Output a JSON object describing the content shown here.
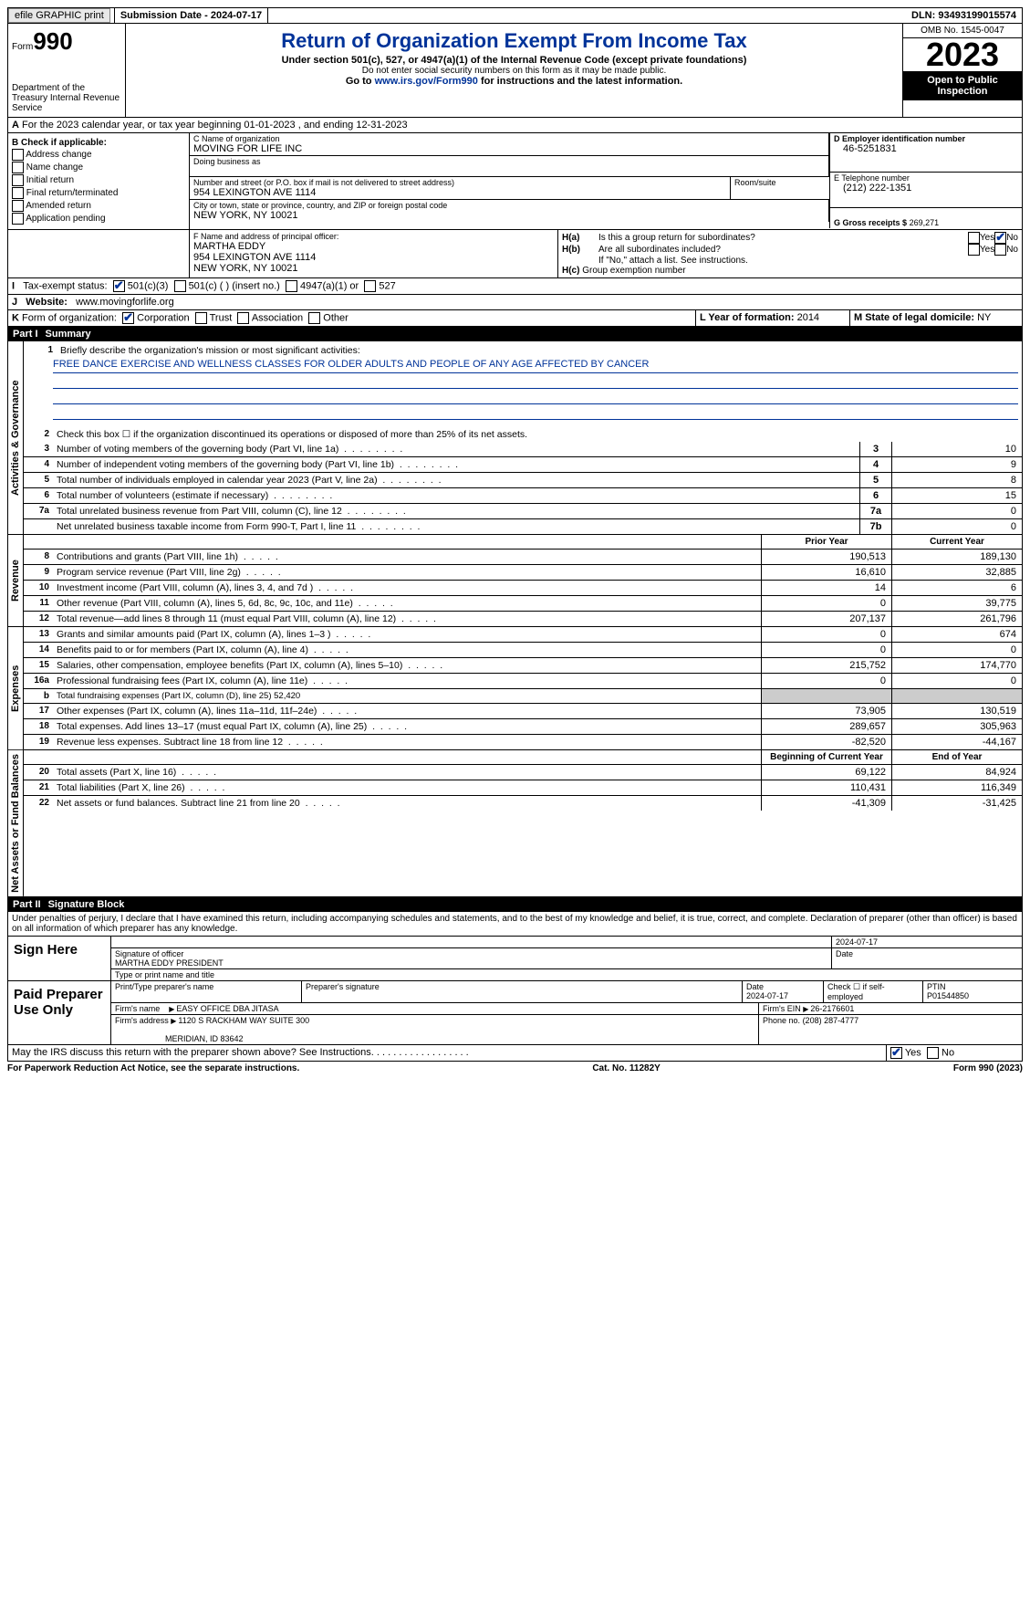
{
  "topbar": {
    "efile": "efile GRAPHIC print",
    "submission": "Submission Date - 2024-07-17",
    "dln": "DLN: 93493199015574"
  },
  "header": {
    "form_label": "Form",
    "form_no": "990",
    "dept": "Department of the Treasury Internal Revenue Service",
    "title": "Return of Organization Exempt From Income Tax",
    "sub1": "Under section 501(c), 527, or 4947(a)(1) of the Internal Revenue Code (except private foundations)",
    "sub2": "Do not enter social security numbers on this form as it may be made public.",
    "sub3_pre": "Go to ",
    "sub3_link": "www.irs.gov/Form990",
    "sub3_post": " for instructions and the latest information.",
    "omb": "OMB No. 1545-0047",
    "year": "2023",
    "inspect": "Open to Public Inspection"
  },
  "lineA": {
    "text": "For the 2023 calendar year, or tax year beginning 01-01-2023   , and ending 12-31-2023",
    "label": "A"
  },
  "sectB": {
    "hdr": "B Check if applicable:",
    "items": [
      "Address change",
      "Name change",
      "Initial return",
      "Final return/terminated",
      "Amended return",
      "Application pending"
    ]
  },
  "sectC": {
    "name_lbl": "C Name of organization",
    "name": "MOVING FOR LIFE INC",
    "dba_lbl": "Doing business as",
    "dba": "",
    "addr_lbl": "Number and street (or P.O. box if mail is not delivered to street address)",
    "room_lbl": "Room/suite",
    "addr": "954 LEXINGTON AVE 1114",
    "city_lbl": "City or town, state or province, country, and ZIP or foreign postal code",
    "city": "NEW YORK, NY  10021"
  },
  "sectD": {
    "lbl": "D Employer identification number",
    "val": "46-5251831"
  },
  "sectE": {
    "lbl": "E Telephone number",
    "val": "(212) 222-1351"
  },
  "sectG": {
    "lbl": "G Gross receipts $",
    "val": "269,271"
  },
  "sectF": {
    "lbl": "F  Name and address of principal officer:",
    "lines": [
      "MARTHA EDDY",
      "954 LEXINGTON AVE 1114",
      "NEW YORK, NY  10021"
    ]
  },
  "sectH": {
    "a": "Is this a group return for subordinates?",
    "a_yes": "Yes",
    "a_no": "No",
    "a_checked": "no",
    "b": "Are all subordinates included?",
    "b_yes": "Yes",
    "b_no": "No",
    "b_note": "If \"No,\" attach a list. See instructions.",
    "c": "Group exemption number",
    "c_lbl": "H(a)",
    "c_lbl2": "H(b)",
    "c_lbl3": "H(c)"
  },
  "sectI": {
    "lbl": "Tax-exempt status:",
    "o1": "501(c)(3)",
    "o2": "501(c) (  ) (insert no.)",
    "o3": "4947(a)(1) or",
    "o4": "527"
  },
  "sectJ": {
    "lbl": "Website:",
    "val": "www.movingforlife.org"
  },
  "sectK": {
    "lbl": "Form of organization:",
    "o1": "Corporation",
    "o2": "Trust",
    "o3": "Association",
    "o4": "Other"
  },
  "sectL": {
    "lbl": "L Year of formation:",
    "val": "2014"
  },
  "sectM": {
    "lbl": "M State of legal domicile:",
    "val": "NY"
  },
  "part1": {
    "num": "Part I",
    "title": "Summary"
  },
  "summary": {
    "groups": [
      {
        "label": "Activities & Governance",
        "rows": [
          {
            "n": "1",
            "t": "Briefly describe the organization's mission or most significant activities:",
            "mission": "FREE DANCE EXERCISE AND WELLNESS CLASSES FOR OLDER ADULTS AND PEOPLE OF ANY AGE AFFECTED BY CANCER",
            "type": "mission"
          },
          {
            "n": "2",
            "t": "Check this box ☐ if the organization discontinued its operations or disposed of more than 25% of its net assets.",
            "type": "plain"
          },
          {
            "n": "3",
            "t": "Number of voting members of the governing body (Part VI, line 1a)",
            "box": "3",
            "v": "10"
          },
          {
            "n": "4",
            "t": "Number of independent voting members of the governing body (Part VI, line 1b)",
            "box": "4",
            "v": "9"
          },
          {
            "n": "5",
            "t": "Total number of individuals employed in calendar year 2023 (Part V, line 2a)",
            "box": "5",
            "v": "8"
          },
          {
            "n": "6",
            "t": "Total number of volunteers (estimate if necessary)",
            "box": "6",
            "v": "15"
          },
          {
            "n": "7a",
            "t": "Total unrelated business revenue from Part VIII, column (C), line 12",
            "box": "7a",
            "v": "0"
          },
          {
            "n": "",
            "t": "Net unrelated business taxable income from Form 990-T, Part I, line 11",
            "box": "7b",
            "v": "0"
          }
        ]
      },
      {
        "label": "Revenue",
        "header": {
          "c1": "Prior Year",
          "c2": "Current Year"
        },
        "rows": [
          {
            "n": "8",
            "t": "Contributions and grants (Part VIII, line 1h)",
            "c1": "190,513",
            "c2": "189,130"
          },
          {
            "n": "9",
            "t": "Program service revenue (Part VIII, line 2g)",
            "c1": "16,610",
            "c2": "32,885"
          },
          {
            "n": "10",
            "t": "Investment income (Part VIII, column (A), lines 3, 4, and 7d )",
            "c1": "14",
            "c2": "6"
          },
          {
            "n": "11",
            "t": "Other revenue (Part VIII, column (A), lines 5, 6d, 8c, 9c, 10c, and 11e)",
            "c1": "0",
            "c2": "39,775"
          },
          {
            "n": "12",
            "t": "Total revenue—add lines 8 through 11 (must equal Part VIII, column (A), line 12)",
            "c1": "207,137",
            "c2": "261,796"
          }
        ]
      },
      {
        "label": "Expenses",
        "rows": [
          {
            "n": "13",
            "t": "Grants and similar amounts paid (Part IX, column (A), lines 1–3 )",
            "c1": "0",
            "c2": "674"
          },
          {
            "n": "14",
            "t": "Benefits paid to or for members (Part IX, column (A), line 4)",
            "c1": "0",
            "c2": "0"
          },
          {
            "n": "15",
            "t": "Salaries, other compensation, employee benefits (Part IX, column (A), lines 5–10)",
            "c1": "215,752",
            "c2": "174,770"
          },
          {
            "n": "16a",
            "t": "Professional fundraising fees (Part IX, column (A), line 11e)",
            "c1": "0",
            "c2": "0"
          },
          {
            "n": "b",
            "t": "Total fundraising expenses (Part IX, column (D), line 25) 52,420",
            "type": "fund",
            "c1": "shade",
            "c2": "shade"
          },
          {
            "n": "17",
            "t": "Other expenses (Part IX, column (A), lines 11a–11d, 11f–24e)",
            "c1": "73,905",
            "c2": "130,519"
          },
          {
            "n": "18",
            "t": "Total expenses. Add lines 13–17 (must equal Part IX, column (A), line 25)",
            "c1": "289,657",
            "c2": "305,963"
          },
          {
            "n": "19",
            "t": "Revenue less expenses. Subtract line 18 from line 12",
            "c1": "-82,520",
            "c2": "-44,167"
          }
        ]
      },
      {
        "label": "Net Assets or Fund Balances",
        "header": {
          "c1": "Beginning of Current Year",
          "c2": "End of Year"
        },
        "rows": [
          {
            "n": "20",
            "t": "Total assets (Part X, line 16)",
            "c1": "69,122",
            "c2": "84,924"
          },
          {
            "n": "21",
            "t": "Total liabilities (Part X, line 26)",
            "c1": "110,431",
            "c2": "116,349"
          },
          {
            "n": "22",
            "t": "Net assets or fund balances. Subtract line 21 from line 20",
            "c1": "-41,309",
            "c2": "-31,425"
          }
        ]
      }
    ]
  },
  "part2": {
    "num": "Part II",
    "title": "Signature Block"
  },
  "perjury": "Under penalties of perjury, I declare that I have examined this return, including accompanying schedules and statements, and to the best of my knowledge and belief, it is true, correct, and complete. Declaration of preparer (other than officer) is based on all information of which preparer has any knowledge.",
  "sign": {
    "here": "Sign Here",
    "sig_lbl": "Signature of officer",
    "date_lbl": "Date",
    "date": "2024-07-17",
    "name": "MARTHA EDDY PRESIDENT",
    "name_lbl": "Type or print name and title"
  },
  "preparer": {
    "here": "Paid Preparer Use Only",
    "name_lbl": "Print/Type preparer's name",
    "sig_lbl": "Preparer's signature",
    "date_lbl": "Date",
    "date": "2024-07-17",
    "self_lbl": "Check ☐ if self-employed",
    "ptin_lbl": "PTIN",
    "ptin": "P01544850",
    "firm_lbl": "Firm's name",
    "firm": "EASY OFFICE DBA JITASA",
    "ein_lbl": "Firm's EIN",
    "ein": "26-2176601",
    "addr_lbl": "Firm's address",
    "addr1": "1120 S RACKHAM WAY SUITE 300",
    "addr2": "MERIDIAN, ID  83642",
    "phone_lbl": "Phone no.",
    "phone": "(208) 287-4777"
  },
  "discuss": {
    "text": "May the IRS discuss this return with the preparer shown above? See Instructions.",
    "yes": "Yes",
    "no": "No",
    "checked": "yes"
  },
  "footer": {
    "l": "For Paperwork Reduction Act Notice, see the separate instructions.",
    "c": "Cat. No. 11282Y",
    "r": "Form 990 (2023)"
  },
  "colors": {
    "link": "#003399",
    "bg": "#ffffff"
  }
}
